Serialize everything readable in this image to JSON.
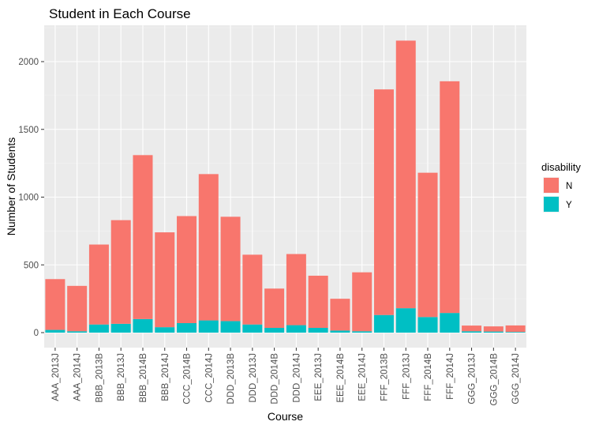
{
  "chart_data": {
    "type": "bar",
    "stacked": true,
    "title": "Student in Each Course",
    "xlabel": "Course",
    "ylabel": "Number of Students",
    "ylim": [
      0,
      2250
    ],
    "yticks": [
      0,
      500,
      1000,
      1500,
      2000
    ],
    "grid": true,
    "legend_position": "right",
    "legend_title": "disability",
    "categories": [
      "AAA_2013J",
      "AAA_2014J",
      "BBB_2013B",
      "BBB_2013J",
      "BBB_2014B",
      "BBB_2014J",
      "CCC_2014B",
      "CCC_2014J",
      "DDD_2013B",
      "DDD_2013J",
      "DDD_2014B",
      "DDD_2014J",
      "EEE_2013J",
      "EEE_2014B",
      "EEE_2014J",
      "FFF_2013B",
      "FFF_2013J",
      "FFF_2014B",
      "FFF_2014J",
      "GGG_2013J",
      "GGG_2014B",
      "GGG_2014J"
    ],
    "series": [
      {
        "name": "N",
        "color": "#F8766D",
        "values": [
          375,
          335,
          590,
          765,
          1210,
          700,
          790,
          1080,
          770,
          515,
          290,
          525,
          385,
          235,
          435,
          1665,
          1975,
          1065,
          1710,
          42,
          38,
          48
        ]
      },
      {
        "name": "Y",
        "color": "#00BFC4",
        "values": [
          20,
          10,
          60,
          65,
          100,
          40,
          70,
          90,
          85,
          60,
          35,
          55,
          35,
          15,
          10,
          130,
          180,
          115,
          145,
          10,
          8,
          5
        ]
      }
    ]
  }
}
